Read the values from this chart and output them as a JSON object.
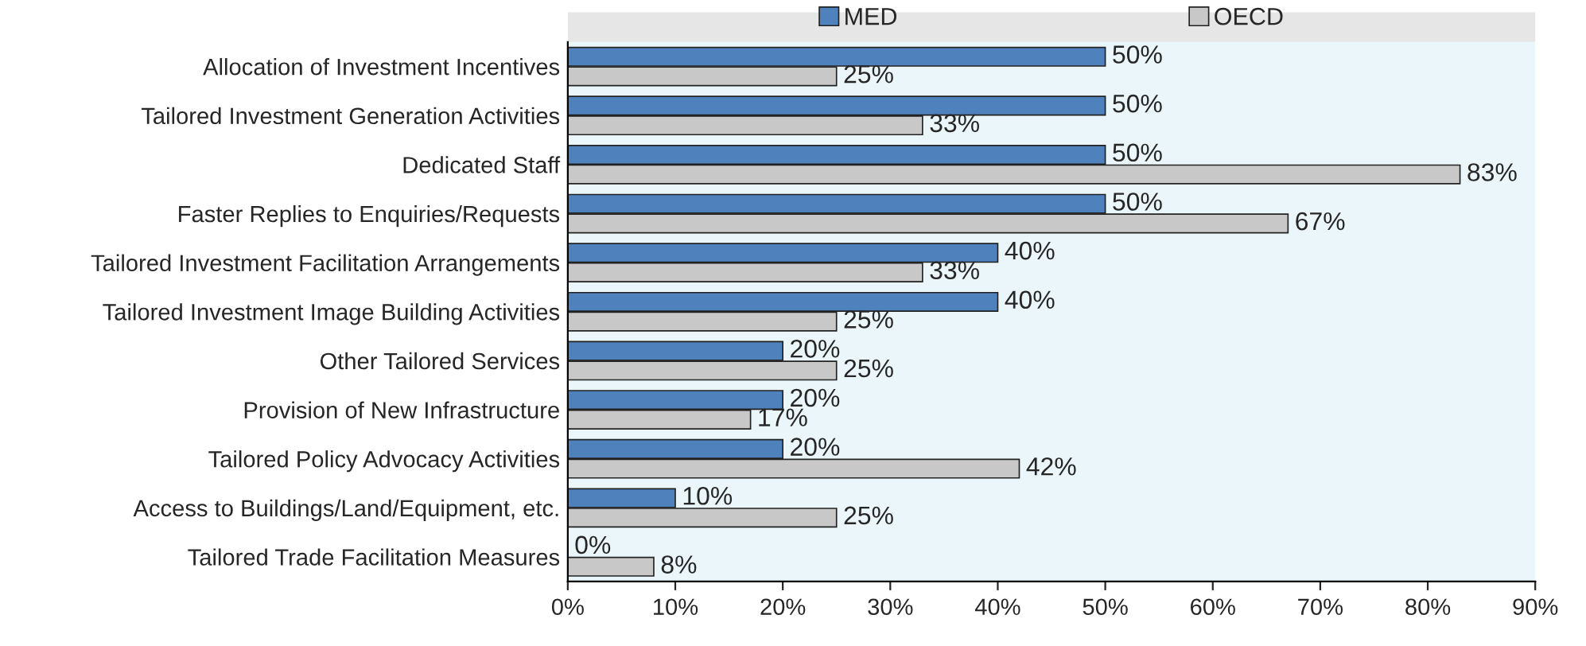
{
  "chart_data": {
    "type": "bar",
    "orientation": "horizontal",
    "categories": [
      "Allocation of Investment Incentives",
      "Tailored Investment Generation Activities",
      "Dedicated Staff",
      "Faster Replies to Enquiries/Requests",
      "Tailored Investment Facilitation Arrangements",
      "Tailored Investment Image Building Activities",
      "Other Tailored Services",
      "Provision of New Infrastructure",
      "Tailored Policy Advocacy Activities",
      "Access to Buildings/Land/Equipment, etc.",
      "Tailored Trade Facilitation Measures"
    ],
    "series": [
      {
        "name": "MED",
        "color": "#4f81bd",
        "values": [
          50,
          50,
          50,
          50,
          40,
          40,
          20,
          20,
          20,
          10,
          0
        ],
        "value_labels": [
          "50%",
          "50%",
          "50%",
          "50%",
          "40%",
          "40%",
          "20%",
          "20%",
          "20%",
          "10%",
          "0%"
        ]
      },
      {
        "name": "OECD",
        "color": "#c8c8c8",
        "values": [
          25,
          33,
          83,
          67,
          33,
          25,
          25,
          17,
          42,
          25,
          8
        ],
        "value_labels": [
          "25%",
          "33%",
          "83%",
          "67%",
          "33%",
          "25%",
          "25%",
          "17%",
          "42%",
          "25%",
          "8%"
        ]
      }
    ],
    "xlim": [
      0,
      90
    ],
    "xticks": [
      {
        "value": 0,
        "label": "0%"
      },
      {
        "value": 10,
        "label": "10%"
      },
      {
        "value": 20,
        "label": "20%"
      },
      {
        "value": 30,
        "label": "30%"
      },
      {
        "value": 40,
        "label": "40%"
      },
      {
        "value": 50,
        "label": "50%"
      },
      {
        "value": 60,
        "label": "60%"
      },
      {
        "value": 70,
        "label": "70%"
      },
      {
        "value": 80,
        "label": "80%"
      },
      {
        "value": 90,
        "label": "90%"
      }
    ],
    "grid": false,
    "legend": "top"
  }
}
